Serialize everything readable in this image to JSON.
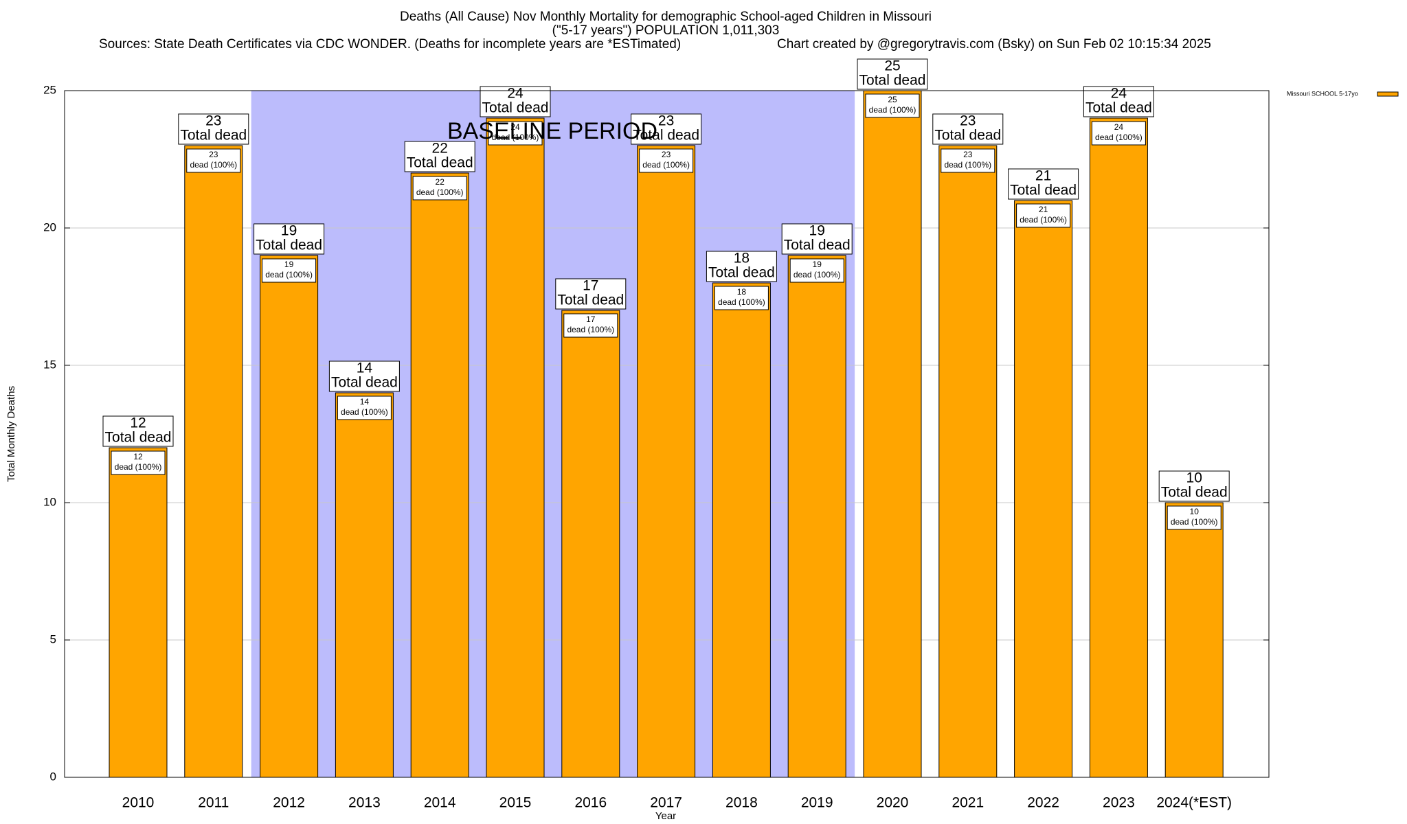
{
  "chart_data": {
    "type": "bar",
    "title": "Deaths (All Cause) Nov Monthly Mortality for demographic School-aged Children in Missouri",
    "subtitle": "(\"5-17 years\") POPULATION 1,011,303",
    "sources": "Sources: State Death Certificates via CDC WONDER. (Deaths for incomplete years are *ESTimated)",
    "credit": "Chart created by @gregorytravis.com (Bsky) on Sun Feb 02 10:15:34 2025",
    "x_label": "Year",
    "y_label": "Total Monthly Deaths",
    "categories": [
      "2010",
      "2011",
      "2012",
      "2013",
      "2014",
      "2015",
      "2016",
      "2017",
      "2018",
      "2019",
      "2020",
      "2021",
      "2022",
      "2023",
      "2024(*EST)"
    ],
    "series": [
      {
        "name": "Missouri SCHOOL 5-17yo",
        "color": "#ffa500",
        "values": [
          12,
          23,
          19,
          14,
          22,
          24,
          17,
          23,
          18,
          19,
          25,
          23,
          21,
          24,
          10
        ]
      }
    ],
    "total_label": "Total dead",
    "share_label": "dead (100%)",
    "baseline": {
      "label": "BASELINE PERIOD",
      "from": "2012",
      "to": "2019",
      "color": "#bcbcfc"
    },
    "ylim": [
      0,
      25
    ],
    "yticks": [
      0,
      5,
      10,
      15,
      20,
      25
    ],
    "grid": true,
    "legend": "top-right"
  }
}
